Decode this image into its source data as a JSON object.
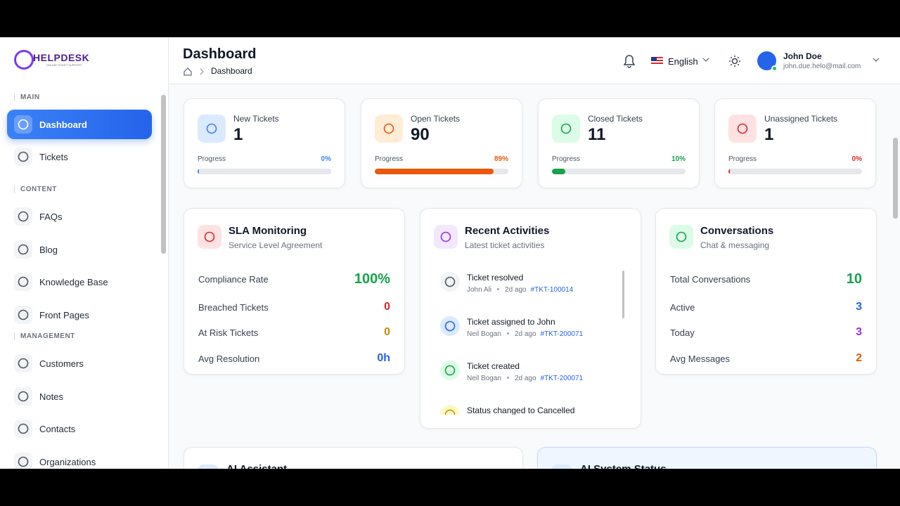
{
  "logo": {
    "name": "HELPDESK",
    "tagline": "ONLINE TICKET SUPPORT"
  },
  "header": {
    "title": "Dashboard",
    "breadcrumb": "Dashboard",
    "language": "English",
    "user": {
      "name": "John Doe",
      "email": "john.due.helo@mail.com"
    }
  },
  "sidebar": {
    "sections": [
      {
        "label": "MAIN",
        "items": [
          "Dashboard",
          "Tickets"
        ]
      },
      {
        "label": "CONTENT",
        "items": [
          "FAQs",
          "Blog",
          "Knowledge Base",
          "Front Pages"
        ]
      },
      {
        "label": "MANAGEMENT",
        "items": [
          "Customers",
          "Notes",
          "Contacts",
          "Organizations"
        ]
      }
    ]
  },
  "stats": [
    {
      "label": "New Tickets",
      "value": 1,
      "progress_label": "Progress",
      "progress": "0%",
      "color": "#3b82f6",
      "bg": "#dbeafe"
    },
    {
      "label": "Open Tickets",
      "value": 90,
      "progress_label": "Progress",
      "progress": "89%",
      "color": "#ea580c",
      "bg": "#ffedd5"
    },
    {
      "label": "Closed Tickets",
      "value": 11,
      "progress_label": "Progress",
      "progress": "10%",
      "color": "#16a34a",
      "bg": "#dcfce7"
    },
    {
      "label": "Unassigned Tickets",
      "value": 1,
      "progress_label": "Progress",
      "progress": "0%",
      "color": "#dc2626",
      "bg": "#fee2e2"
    }
  ],
  "sla": {
    "title": "SLA Monitoring",
    "subtitle": "Service Level Agreement",
    "rows": [
      {
        "label": "Compliance Rate",
        "value": "100%",
        "color": "#16a34a"
      },
      {
        "label": "Breached Tickets",
        "value": "0",
        "color": "#dc2626"
      },
      {
        "label": "At Risk Tickets",
        "value": "0",
        "color": "#ca8a04"
      },
      {
        "label": "Avg Resolution",
        "value": "0h",
        "color": "#2563eb"
      }
    ]
  },
  "activities": {
    "title": "Recent Activities",
    "subtitle": "Latest ticket activities",
    "items": [
      {
        "title": "Ticket resolved",
        "user": "John Ali",
        "time": "2d ago",
        "ticket": "#TKT-100014"
      },
      {
        "title": "Ticket assigned to John",
        "user": "Neil Bogan",
        "time": "2d ago",
        "ticket": "#TKT-200071"
      },
      {
        "title": "Ticket created",
        "user": "Neil Bogan",
        "time": "2d ago",
        "ticket": "#TKT-200071"
      },
      {
        "title": "Status changed to Cancelled"
      }
    ]
  },
  "conversations": {
    "title": "Conversations",
    "subtitle": "Chat & messaging",
    "rows": [
      {
        "label": "Total Conversations",
        "value": "10",
        "color": "#16a34a"
      },
      {
        "label": "Active",
        "value": "3",
        "color": "#2563eb"
      },
      {
        "label": "Today",
        "value": "3",
        "color": "#9333ea"
      },
      {
        "label": "Avg Messages",
        "value": "2",
        "color": "#ea580c"
      }
    ]
  },
  "bottom": [
    "AI Assistant",
    "AI System Status"
  ]
}
